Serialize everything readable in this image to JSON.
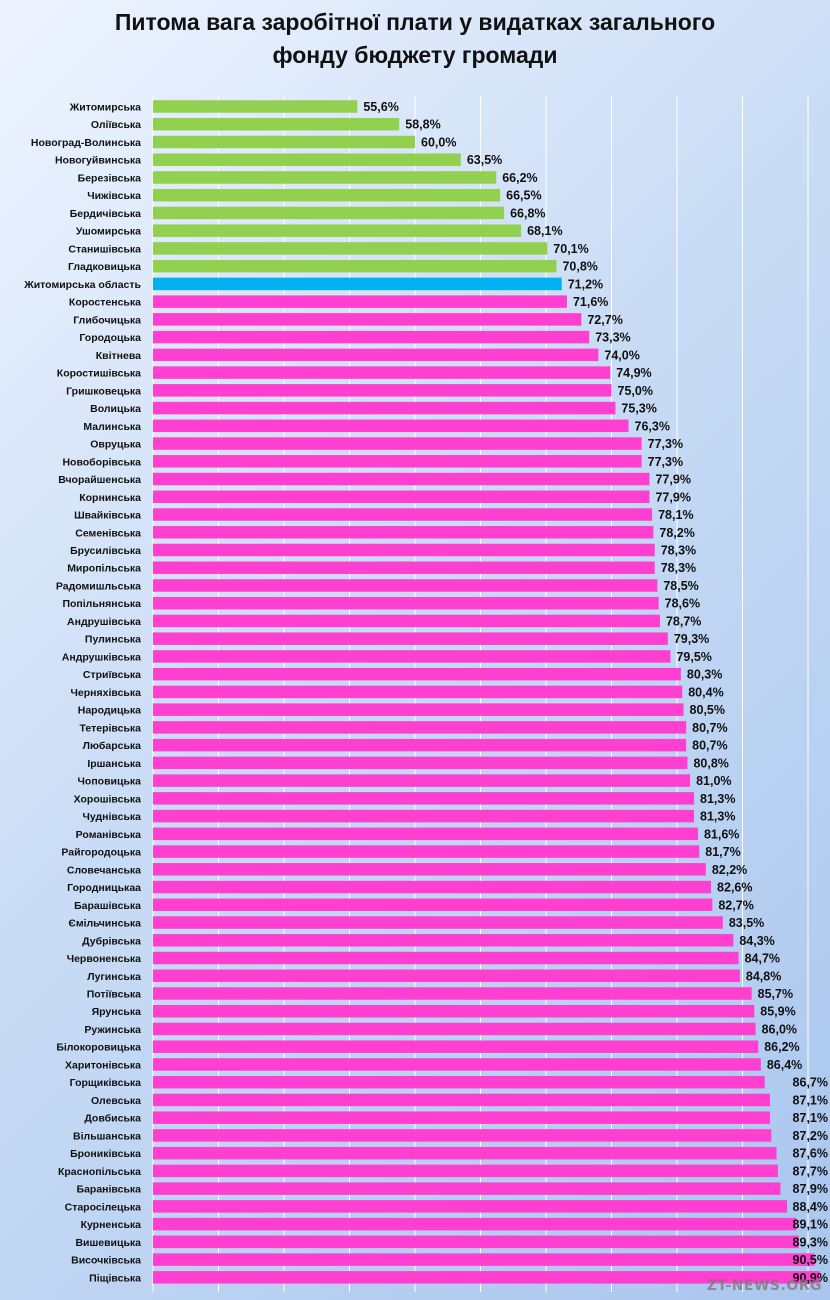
{
  "title": {
    "line1": "Питома вага заробітної плати у видатках загального",
    "line2": "фонду бюджету громади"
  },
  "watermark": "ZT-NEWS.ORG",
  "colors": {
    "default_bar": "#ff3fd0",
    "top_bar": "#92d050",
    "highlight_bar": "#00b0f0",
    "grid": "#ffffff"
  },
  "chart_data": {
    "type": "bar",
    "orientation": "horizontal",
    "title": "Питома вага заробітної плати у видатках загального фонду бюджету громади",
    "xlabel": "",
    "ylabel": "",
    "xlim": [
      40,
      90
    ],
    "grid": true,
    "value_suffix": "%",
    "decimal_separator": ",",
    "categories": [
      "Житомирська",
      "Оліївська",
      "Новоград-Волинська",
      "Новогуйвинська",
      "Березівська",
      "Чижівська",
      "Бердичівська",
      "Ушомирська",
      "Станишівська",
      "Гладковицька",
      "Житомирська область",
      "Коростенська",
      "Глибочицька",
      "Городоцька",
      "Квітнева",
      "Коростишівська",
      "Гришковецька",
      "Волицька",
      "Малинська",
      "Овруцька",
      "Новоборівська",
      "Вчорайшенська",
      "Корнинська",
      "Швайківська",
      "Семенівська",
      "Брусилівська",
      "Миропільська",
      "Радомишльська",
      "Попільнянська",
      "Андрушівська",
      "Пулинська",
      "Андрушківська",
      "Стриївська",
      "Черняхівська",
      "Народицька",
      "Тетерівська",
      "Любарська",
      "Іршанська",
      "Чоповицька",
      "Хорошівська",
      "Чуднівська",
      "Романівська",
      "Райгородоцька",
      "Словечанська",
      "Городницькаа",
      "Барашівська",
      "Ємільчинська",
      "Дубрівська",
      "Червоненська",
      "Лугинська",
      "Потіївська",
      "Ярунська",
      "Ружинська",
      "Білокоровицька",
      "Харитонівська",
      "Горщиківська",
      "Олевська",
      "Довбиська",
      "Вільшанська",
      "Броників­ська",
      "Краснопільська",
      "Баранівська",
      "Старосілецька",
      "Курненська",
      "Вишевицька",
      "Височківська",
      "Піщівська"
    ],
    "values": [
      55.6,
      58.8,
      60.0,
      63.5,
      66.2,
      66.5,
      66.8,
      68.1,
      70.1,
      70.8,
      71.2,
      71.6,
      72.7,
      73.3,
      74.0,
      74.9,
      75.0,
      75.3,
      76.3,
      77.3,
      77.3,
      77.9,
      77.9,
      78.1,
      78.2,
      78.3,
      78.3,
      78.5,
      78.6,
      78.7,
      79.3,
      79.5,
      80.3,
      80.4,
      80.5,
      80.7,
      80.7,
      80.8,
      81.0,
      81.3,
      81.3,
      81.6,
      81.7,
      82.2,
      82.6,
      82.7,
      83.5,
      84.3,
      84.7,
      84.8,
      85.7,
      85.9,
      86.0,
      86.2,
      86.4,
      86.7,
      87.1,
      87.1,
      87.2,
      87.6,
      87.7,
      87.9,
      88.4,
      89.1,
      89.3,
      90.5,
      90.9
    ],
    "top_count": 10,
    "highlight_category": "Житомирська область"
  }
}
